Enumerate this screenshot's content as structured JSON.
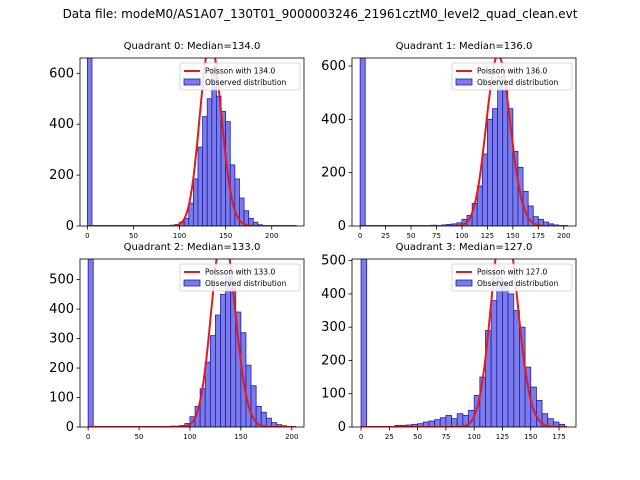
{
  "figure_title": "Data file: modeM0/AS1A07_130T01_9000003246_21961cztM0_level2_quad_clean.evt",
  "colors": {
    "bar_fill": "#7b7bea",
    "bar_edge": "#1f1fa8",
    "curve": "#e41a1c"
  },
  "chart_data": [
    {
      "type": "bar",
      "title": "Quadrant 0: Median=134.0",
      "legend": [
        "Poisson with 134.0",
        "Observed distribution"
      ],
      "legend_position": "top-right",
      "mean": 134.0,
      "xlim": [
        -8,
        235
      ],
      "ylim": [
        0,
        660
      ],
      "xticks": [
        0,
        50,
        100,
        150,
        200
      ],
      "yticks": [
        0,
        200,
        400,
        600
      ],
      "bin_width": 5,
      "zero_bin": 660,
      "bins": [
        [
          60,
          1
        ],
        [
          65,
          1
        ],
        [
          70,
          1
        ],
        [
          75,
          1
        ],
        [
          80,
          1
        ],
        [
          85,
          2
        ],
        [
          90,
          3
        ],
        [
          95,
          6
        ],
        [
          100,
          15
        ],
        [
          105,
          30
        ],
        [
          110,
          90
        ],
        [
          115,
          185
        ],
        [
          120,
          310
        ],
        [
          125,
          430
        ],
        [
          130,
          500
        ],
        [
          135,
          620
        ],
        [
          140,
          510
        ],
        [
          145,
          450
        ],
        [
          150,
          410
        ],
        [
          155,
          240
        ],
        [
          160,
          185
        ],
        [
          165,
          110
        ],
        [
          170,
          60
        ],
        [
          175,
          30
        ],
        [
          180,
          15
        ],
        [
          185,
          5
        ],
        [
          190,
          2
        ]
      ]
    },
    {
      "type": "bar",
      "title": "Quadrant 1: Median=136.0",
      "legend": [
        "Poisson with 136.0",
        "Observed distribution"
      ],
      "legend_position": "top-right",
      "mean": 136.0,
      "xlim": [
        -8,
        212
      ],
      "ylim": [
        0,
        630
      ],
      "xticks": [
        0,
        25,
        50,
        75,
        100,
        125,
        150,
        175,
        200
      ],
      "yticks": [
        0,
        200,
        400,
        600
      ],
      "bin_width": 5,
      "zero_bin": 630,
      "bins": [
        [
          70,
          3
        ],
        [
          80,
          4
        ],
        [
          85,
          6
        ],
        [
          90,
          8
        ],
        [
          95,
          12
        ],
        [
          100,
          25
        ],
        [
          105,
          40
        ],
        [
          110,
          85
        ],
        [
          115,
          150
        ],
        [
          120,
          270
        ],
        [
          125,
          400
        ],
        [
          130,
          440
        ],
        [
          135,
          560
        ],
        [
          140,
          510
        ],
        [
          145,
          440
        ],
        [
          150,
          280
        ],
        [
          155,
          220
        ],
        [
          160,
          130
        ],
        [
          165,
          75
        ],
        [
          170,
          35
        ],
        [
          175,
          25
        ],
        [
          180,
          15
        ],
        [
          185,
          8
        ],
        [
          190,
          4
        ],
        [
          195,
          2
        ]
      ]
    },
    {
      "type": "bar",
      "title": "Quadrant 2: Median=133.0",
      "legend": [
        "Poisson with 133.0",
        "Observed distribution"
      ],
      "legend_position": "top-right",
      "mean": 133.0,
      "xlim": [
        -8,
        212
      ],
      "ylim": [
        0,
        570
      ],
      "xticks": [
        0,
        50,
        100,
        150,
        200
      ],
      "yticks": [
        0,
        100,
        200,
        300,
        400,
        500
      ],
      "bin_width": 5,
      "zero_bin": 570,
      "bins": [
        [
          70,
          2
        ],
        [
          80,
          3
        ],
        [
          85,
          3
        ],
        [
          90,
          5
        ],
        [
          95,
          12
        ],
        [
          100,
          35
        ],
        [
          105,
          70
        ],
        [
          110,
          130
        ],
        [
          115,
          220
        ],
        [
          120,
          310
        ],
        [
          125,
          380
        ],
        [
          130,
          450
        ],
        [
          135,
          510
        ],
        [
          140,
          470
        ],
        [
          145,
          390
        ],
        [
          150,
          320
        ],
        [
          155,
          210
        ],
        [
          160,
          140
        ],
        [
          165,
          70
        ],
        [
          170,
          50
        ],
        [
          175,
          30
        ],
        [
          180,
          15
        ],
        [
          185,
          8
        ],
        [
          190,
          4
        ],
        [
          195,
          2
        ]
      ]
    },
    {
      "type": "bar",
      "title": "Quadrant 3: Median=127.0",
      "legend": [
        "Poisson with 127.0",
        "Observed distribution"
      ],
      "legend_position": "top-right",
      "mean": 127.0,
      "xlim": [
        -8,
        190
      ],
      "ylim": [
        0,
        505
      ],
      "xticks": [
        0,
        25,
        50,
        75,
        100,
        125,
        150,
        175
      ],
      "yticks": [
        0,
        100,
        200,
        300,
        400,
        500
      ],
      "bin_width": 5,
      "zero_bin": 505,
      "bins": [
        [
          30,
          5
        ],
        [
          35,
          5
        ],
        [
          40,
          6
        ],
        [
          45,
          8
        ],
        [
          50,
          10
        ],
        [
          55,
          15
        ],
        [
          60,
          18
        ],
        [
          65,
          22
        ],
        [
          70,
          28
        ],
        [
          75,
          35
        ],
        [
          80,
          25
        ],
        [
          85,
          40
        ],
        [
          90,
          35
        ],
        [
          95,
          50
        ],
        [
          100,
          95
        ],
        [
          105,
          150
        ],
        [
          110,
          290
        ],
        [
          115,
          380
        ],
        [
          120,
          450
        ],
        [
          125,
          430
        ],
        [
          130,
          400
        ],
        [
          135,
          350
        ],
        [
          140,
          300
        ],
        [
          145,
          180
        ],
        [
          150,
          120
        ],
        [
          155,
          80
        ],
        [
          160,
          40
        ],
        [
          165,
          25
        ],
        [
          170,
          15
        ],
        [
          175,
          8
        ]
      ]
    }
  ]
}
